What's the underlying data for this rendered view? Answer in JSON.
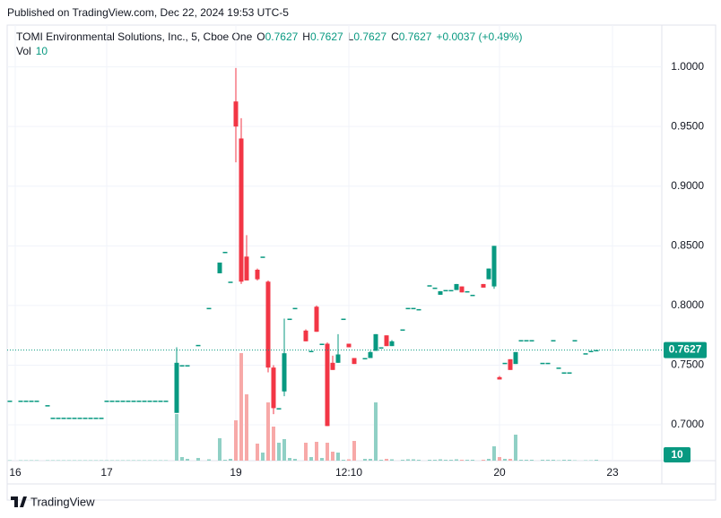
{
  "header": {
    "published": "Published on TradingView.com, Dec 22, 2024 19:53 UTC-5",
    "footer": "TradingView"
  },
  "chart_data": {
    "type": "candlestick",
    "title": "TOMI Environmental Solutions, Inc., 5, Cboe One",
    "ohlc_labels": [
      {
        "key": "O",
        "value": "0.7627"
      },
      {
        "key": "H",
        "value": "0.7627"
      },
      {
        "key": "L",
        "value": "0.7627"
      },
      {
        "key": "C",
        "value": "0.7627"
      }
    ],
    "change": "+0.0037 (+0.49%)",
    "volume_title": "Vol",
    "volume_last": 10,
    "up_color": "#089981",
    "down_color": "#f23645",
    "volume_up_color": "#90d0c5",
    "volume_down_color": "#f7a9a8",
    "price_line": {
      "value": 0.7627,
      "label": "0.7627"
    },
    "ylim": [
      0.67,
      1.035
    ],
    "yticks": [
      {
        "value": 0.7,
        "label": "0.7000"
      },
      {
        "value": 0.75,
        "label": "0.7500"
      },
      {
        "value": 0.8,
        "label": "0.8000"
      },
      {
        "value": 0.85,
        "label": "0.8500"
      },
      {
        "value": 0.9,
        "label": "0.9000"
      },
      {
        "value": 0.95,
        "label": "0.9500"
      },
      {
        "value": 1.0,
        "label": "1.0000"
      }
    ],
    "volume_ylim": [
      0,
      1300
    ],
    "xticks": [
      {
        "value": 1,
        "label": "16"
      },
      {
        "value": 18,
        "label": "17"
      },
      {
        "value": 42,
        "label": "19"
      },
      {
        "value": 63,
        "label": "12:10"
      },
      {
        "value": 91,
        "label": "20"
      },
      {
        "value": 112,
        "label": "23"
      }
    ],
    "candles": [
      [
        0.7203,
        0.7203,
        0.7203,
        0.7203,
        5
      ],
      null,
      [
        0.7203,
        0.7203,
        0.7203,
        0.7203,
        5
      ],
      [
        0.7203,
        0.7203,
        0.7203,
        0.7203,
        5
      ],
      [
        0.7203,
        0.7203,
        0.7203,
        0.7203,
        5
      ],
      [
        0.7203,
        0.7203,
        0.7203,
        0.7203,
        5
      ],
      null,
      [
        0.7165,
        0.7165,
        0.7165,
        0.7165,
        5
      ],
      [
        0.706,
        0.706,
        0.706,
        0.706,
        5
      ],
      [
        0.706,
        0.706,
        0.706,
        0.706,
        5
      ],
      [
        0.706,
        0.706,
        0.706,
        0.706,
        5
      ],
      [
        0.706,
        0.706,
        0.706,
        0.706,
        5
      ],
      [
        0.706,
        0.706,
        0.706,
        0.706,
        5
      ],
      [
        0.706,
        0.706,
        0.706,
        0.706,
        5
      ],
      [
        0.706,
        0.706,
        0.706,
        0.706,
        5
      ],
      [
        0.706,
        0.706,
        0.706,
        0.706,
        5
      ],
      [
        0.706,
        0.706,
        0.706,
        0.706,
        5
      ],
      [
        0.706,
        0.706,
        0.706,
        0.706,
        5
      ],
      [
        0.7203,
        0.7203,
        0.7203,
        0.7203,
        5
      ],
      [
        0.7203,
        0.7203,
        0.7203,
        0.7203,
        5
      ],
      [
        0.7203,
        0.7203,
        0.7203,
        0.7203,
        5
      ],
      [
        0.7203,
        0.7203,
        0.7203,
        0.7203,
        5
      ],
      [
        0.7203,
        0.7203,
        0.7203,
        0.7203,
        5
      ],
      [
        0.7203,
        0.7203,
        0.7203,
        0.7203,
        5
      ],
      [
        0.7203,
        0.7203,
        0.7203,
        0.7203,
        5
      ],
      [
        0.7203,
        0.7203,
        0.7203,
        0.7203,
        5
      ],
      [
        0.7203,
        0.7203,
        0.7203,
        0.7203,
        5
      ],
      [
        0.7203,
        0.7203,
        0.7203,
        0.7203,
        5
      ],
      [
        0.7203,
        0.7203,
        0.7203,
        0.7203,
        5
      ],
      [
        0.7203,
        0.7203,
        0.7203,
        0.7203,
        5
      ],
      null,
      [
        0.71,
        0.765,
        0.71,
        0.752,
        520
      ],
      [
        0.75,
        0.75,
        0.75,
        0.75,
        40
      ],
      [
        0.75,
        0.75,
        0.75,
        0.75,
        20
      ],
      null,
      [
        0.767,
        0.767,
        0.767,
        0.767,
        30
      ],
      null,
      [
        0.798,
        0.798,
        0.798,
        0.798,
        15
      ],
      null,
      [
        0.827,
        0.836,
        0.827,
        0.836,
        250
      ],
      [
        0.845,
        0.845,
        0.845,
        0.845,
        10
      ],
      [
        0.82,
        0.82,
        0.82,
        0.82,
        20
      ],
      [
        0.971,
        0.999,
        0.92,
        0.95,
        450
      ],
      [
        0.94,
        0.957,
        0.818,
        0.82,
        1200
      ],
      [
        0.841,
        0.859,
        0.821,
        0.821,
        740
      ],
      null,
      [
        0.83,
        0.831,
        0.821,
        0.822,
        190
      ],
      [
        0.841,
        0.841,
        0.841,
        0.841,
        90
      ],
      [
        0.82,
        0.821,
        0.744,
        0.748,
        650
      ],
      [
        0.748,
        0.75,
        0.709,
        0.714,
        380
      ],
      [
        0.714,
        0.714,
        0.714,
        0.714,
        200
      ],
      [
        0.728,
        0.789,
        0.724,
        0.76,
        240
      ],
      [
        0.789,
        0.789,
        0.789,
        0.789,
        30
      ],
      [
        0.798,
        0.798,
        0.798,
        0.798,
        20
      ],
      null,
      [
        0.779,
        0.78,
        0.77,
        0.77,
        200
      ],
      [
        0.762,
        0.762,
        0.762,
        0.762,
        40
      ],
      [
        0.799,
        0.8,
        0.778,
        0.778,
        210
      ],
      [
        0.768,
        0.768,
        0.768,
        0.768,
        30
      ],
      [
        0.768,
        0.769,
        0.699,
        0.699,
        200
      ],
      [
        0.752,
        0.758,
        0.746,
        0.746,
        100
      ],
      [
        0.752,
        0.776,
        0.752,
        0.759,
        90
      ],
      [
        0.789,
        0.789,
        0.789,
        0.789,
        10
      ],
      [
        0.768,
        0.768,
        0.765,
        0.765,
        15
      ],
      [
        0.756,
        0.756,
        0.751,
        0.751,
        220
      ],
      null,
      [
        0.756,
        0.756,
        0.756,
        0.756,
        20
      ],
      [
        0.756,
        0.762,
        0.756,
        0.761,
        20
      ],
      [
        0.762,
        0.776,
        0.762,
        0.776,
        650
      ],
      [
        0.765,
        0.765,
        0.765,
        0.765,
        10
      ],
      [
        0.775,
        0.775,
        0.766,
        0.766,
        20
      ],
      [
        0.766,
        0.771,
        0.766,
        0.77,
        15
      ],
      null,
      [
        0.78,
        0.78,
        0.78,
        0.78,
        10
      ],
      [
        0.798,
        0.798,
        0.798,
        0.798,
        15
      ],
      [
        0.798,
        0.798,
        0.798,
        0.798,
        15
      ],
      [
        0.797,
        0.797,
        0.797,
        0.797,
        10
      ],
      null,
      [
        0.817,
        0.817,
        0.817,
        0.817,
        10
      ],
      [
        0.815,
        0.815,
        0.815,
        0.815,
        10
      ],
      [
        0.809,
        0.812,
        0.809,
        0.812,
        15
      ],
      [
        0.813,
        0.813,
        0.813,
        0.813,
        10
      ],
      [
        0.813,
        0.813,
        0.813,
        0.813,
        10
      ],
      [
        0.813,
        0.818,
        0.813,
        0.818,
        15
      ],
      [
        0.816,
        0.816,
        0.811,
        0.811,
        10
      ],
      [
        0.811,
        0.812,
        0.811,
        0.812,
        10
      ],
      [
        0.809,
        0.809,
        0.809,
        0.809,
        10
      ],
      null,
      [
        0.818,
        0.818,
        0.815,
        0.815,
        10
      ],
      [
        0.822,
        0.831,
        0.822,
        0.831,
        20
      ],
      [
        0.816,
        0.85,
        0.814,
        0.85,
        160
      ],
      [
        0.74,
        0.741,
        0.738,
        0.738,
        40
      ],
      [
        0.752,
        0.752,
        0.752,
        0.752,
        20
      ],
      [
        0.755,
        0.755,
        0.746,
        0.746,
        20
      ],
      [
        0.751,
        0.761,
        0.751,
        0.761,
        290
      ],
      [
        0.771,
        0.771,
        0.771,
        0.771,
        10
      ],
      [
        0.771,
        0.771,
        0.771,
        0.771,
        10
      ],
      [
        0.771,
        0.771,
        0.771,
        0.771,
        10
      ],
      null,
      [
        0.752,
        0.752,
        0.752,
        0.752,
        10
      ],
      [
        0.752,
        0.752,
        0.752,
        0.752,
        10
      ],
      [
        0.771,
        0.771,
        0.771,
        0.771,
        10
      ],
      [
        0.748,
        0.748,
        0.748,
        0.748,
        5
      ],
      [
        0.744,
        0.744,
        0.744,
        0.744,
        10
      ],
      [
        0.744,
        0.744,
        0.744,
        0.744,
        10
      ],
      [
        0.771,
        0.771,
        0.771,
        0.771,
        5
      ],
      null,
      [
        0.76,
        0.76,
        0.76,
        0.76,
        5
      ],
      [
        0.762,
        0.762,
        0.762,
        0.762,
        5
      ],
      [
        0.7627,
        0.7627,
        0.7627,
        0.7627,
        10
      ],
      null,
      null,
      null
    ]
  }
}
